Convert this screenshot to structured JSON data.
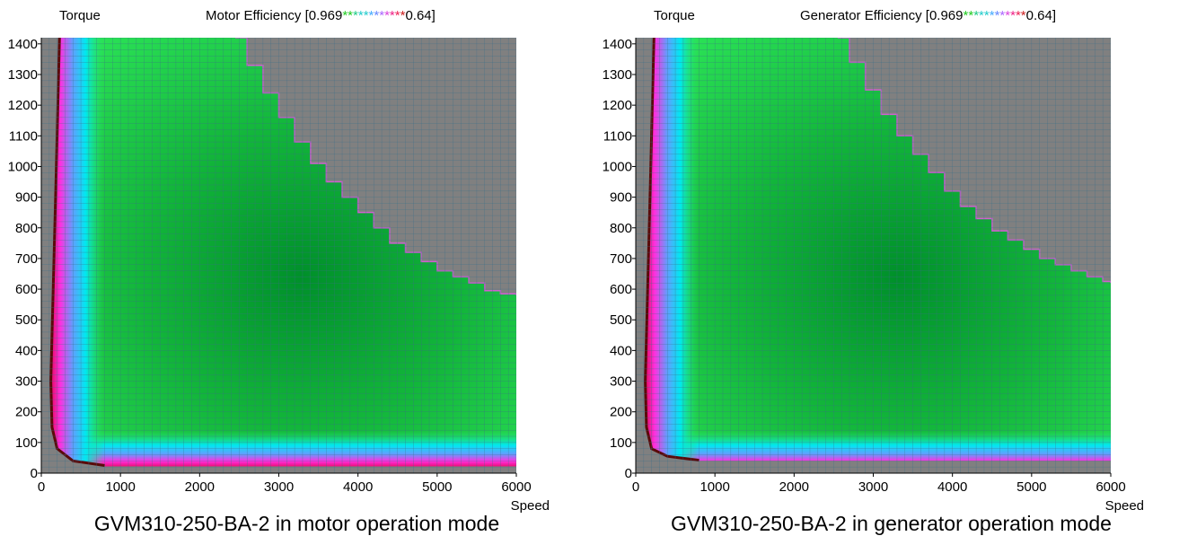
{
  "chart_data": [
    {
      "type": "heatmap",
      "title_prefix": "Motor Efficiency [0.969",
      "title_stars": "************",
      "title_suffix": "0.64]",
      "ylabel": "Torque",
      "xlabel": "Speed",
      "xlim": [
        0,
        6000
      ],
      "ylim": [
        0,
        1420
      ],
      "x_ticks": [
        0,
        1000,
        2000,
        3000,
        4000,
        5000,
        6000
      ],
      "y_ticks": [
        0,
        100,
        200,
        300,
        400,
        500,
        600,
        700,
        800,
        900,
        1000,
        1100,
        1200,
        1300,
        1400
      ],
      "color_range": [
        0.969,
        0.64
      ],
      "grid": true,
      "caption": "GVM310-250-BA-2 in motor operation mode",
      "boundary": {
        "corner_speed": 2450,
        "max_torque": 1420,
        "speeds": [
          2450,
          2600,
          2800,
          3000,
          3200,
          3400,
          3600,
          3800,
          4000,
          4200,
          4400,
          4600,
          4800,
          5000,
          5200,
          5400,
          5600,
          5800,
          6000
        ],
        "torques": [
          1420,
          1330,
          1240,
          1160,
          1080,
          1010,
          950,
          900,
          850,
          800,
          750,
          720,
          690,
          660,
          640,
          620,
          595,
          585,
          580
        ]
      },
      "low_torque_edge": 22,
      "low_speed_edge_torque": [
        1420,
        1000,
        600,
        300,
        150,
        80,
        40,
        25
      ],
      "low_speed_edge_speed": [
        230,
        190,
        150,
        120,
        135,
        200,
        400,
        800
      ]
    },
    {
      "type": "heatmap",
      "title_prefix": "Generator Efficiency [0.969",
      "title_stars": "************",
      "title_suffix": "0.64]",
      "ylabel": "Torque",
      "xlabel": "Speed",
      "xlim": [
        0,
        6000
      ],
      "ylim": [
        0,
        1420
      ],
      "x_ticks": [
        0,
        1000,
        2000,
        3000,
        4000,
        5000,
        6000
      ],
      "y_ticks": [
        0,
        100,
        200,
        300,
        400,
        500,
        600,
        700,
        800,
        900,
        1000,
        1100,
        1200,
        1300,
        1400
      ],
      "color_range": [
        0.969,
        0.64
      ],
      "grid": true,
      "caption": "GVM310-250-BA-2 in generator operation mode",
      "boundary": {
        "corner_speed": 2550,
        "max_torque": 1420,
        "speeds": [
          2550,
          2700,
          2900,
          3100,
          3300,
          3500,
          3700,
          3900,
          4100,
          4300,
          4500,
          4700,
          4900,
          5100,
          5300,
          5500,
          5700,
          5900,
          6000
        ],
        "torques": [
          1420,
          1340,
          1250,
          1170,
          1100,
          1040,
          980,
          920,
          870,
          830,
          790,
          760,
          730,
          700,
          680,
          660,
          640,
          625,
          620
        ]
      },
      "low_torque_edge": 40,
      "low_speed_edge_torque": [
        1420,
        1000,
        600,
        300,
        150,
        80,
        55,
        42
      ],
      "low_speed_edge_speed": [
        230,
        190,
        150,
        120,
        135,
        200,
        400,
        800
      ]
    }
  ]
}
